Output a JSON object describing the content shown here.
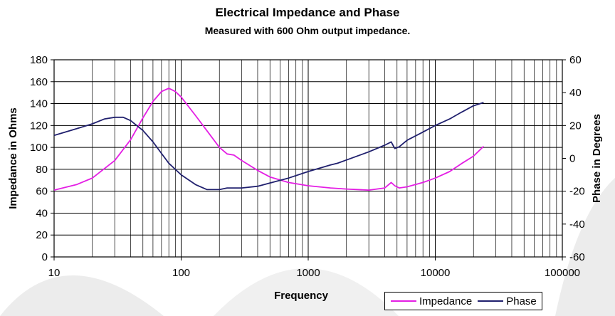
{
  "chart_data": {
    "type": "line",
    "title": "Electrical Impedance and Phase",
    "subtitle": "Measured with 600 Ohm output impedance.",
    "xlabel": "Frequency",
    "ylabel": "Impedance in Ohms",
    "y2label": "Phase in Degrees",
    "xscale": "log",
    "xlim": [
      10,
      100000
    ],
    "ylim": [
      0,
      180
    ],
    "y2lim": [
      -60,
      60
    ],
    "xticks": [
      "10",
      "100",
      "1000",
      "10000",
      "100000"
    ],
    "yticks": [
      "0",
      "20",
      "40",
      "60",
      "80",
      "100",
      "120",
      "140",
      "160",
      "180"
    ],
    "y2ticks": [
      "-60",
      "-40",
      "-20",
      "0",
      "20",
      "40",
      "60"
    ],
    "grid": true,
    "legend_position": "bottom-right",
    "series": [
      {
        "name": "Impedance",
        "axis": "left",
        "color": "#e41ee4",
        "x": [
          10,
          15,
          20,
          30,
          40,
          50,
          60,
          70,
          80,
          90,
          100,
          130,
          170,
          200,
          230,
          260,
          300,
          400,
          500,
          700,
          1000,
          1500,
          2000,
          3000,
          4000,
          4500,
          4800,
          5200,
          6000,
          8000,
          10000,
          13000,
          16000,
          20000,
          24000
        ],
        "y": [
          61,
          66,
          72,
          88,
          107,
          127,
          142,
          151,
          154,
          151,
          146,
          129,
          111,
          100,
          94,
          93,
          88,
          79,
          73,
          68,
          65,
          63,
          62,
          61,
          63,
          68,
          65,
          63,
          64,
          68,
          72,
          78,
          85,
          92,
          101
        ]
      },
      {
        "name": "Phase",
        "axis": "right",
        "color": "#20206e",
        "x": [
          10,
          15,
          20,
          25,
          30,
          35,
          40,
          50,
          60,
          70,
          80,
          100,
          130,
          160,
          200,
          230,
          260,
          300,
          400,
          500,
          700,
          1000,
          1500,
          1700,
          2000,
          3000,
          4000,
          4500,
          4800,
          5200,
          6000,
          8000,
          10000,
          13000,
          16000,
          20000,
          24000
        ],
        "y": [
          14,
          18,
          21,
          24,
          25,
          25,
          23,
          17,
          10,
          3,
          -3,
          -10,
          -16,
          -19,
          -19,
          -18,
          -18,
          -18,
          -17,
          -15,
          -12,
          -8,
          -4,
          -3,
          -1,
          4,
          8,
          10,
          6,
          7,
          11,
          16,
          20,
          24,
          28,
          32,
          34
        ]
      }
    ]
  }
}
